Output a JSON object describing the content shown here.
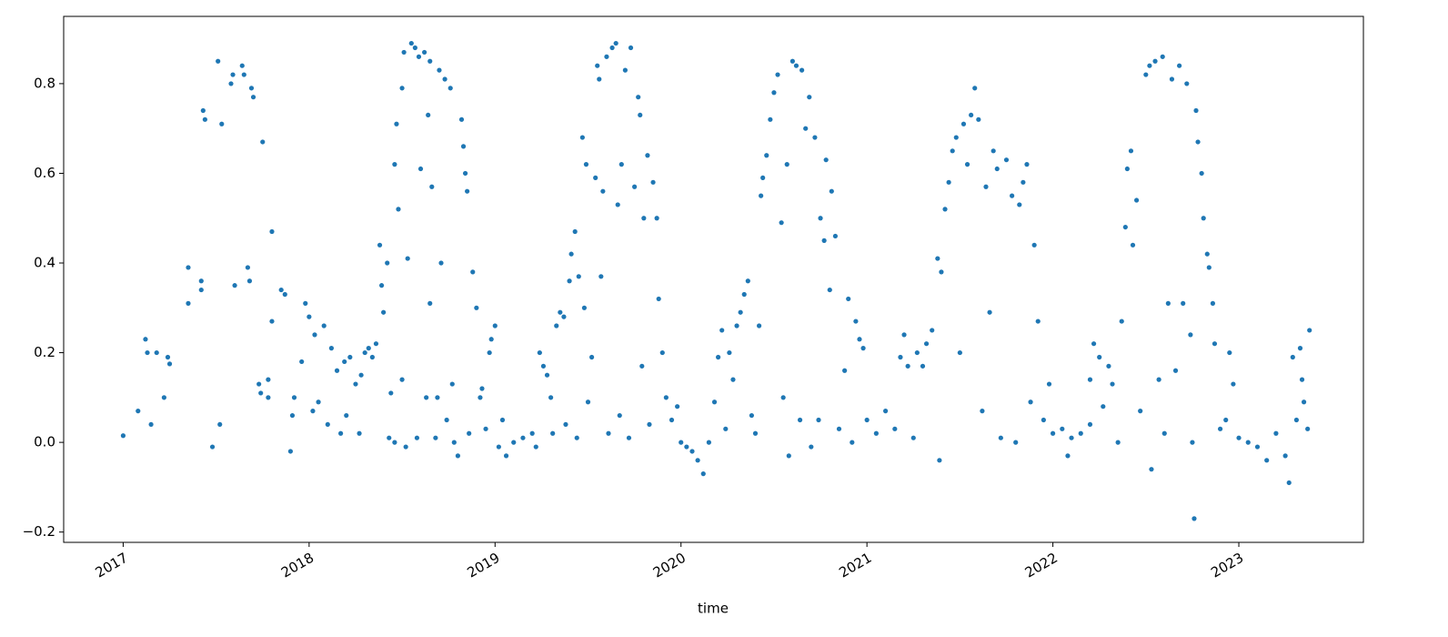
{
  "chart_data": {
    "type": "scatter",
    "xlabel": "time",
    "color": "#1f77b4",
    "xlim": [
      2016.68,
      2023.67
    ],
    "xticks": [
      2017,
      2018,
      2019,
      2020,
      2021,
      2022,
      2023
    ],
    "ylim": [
      -0.223,
      0.95
    ],
    "yticks": [
      {
        "value": -0.2,
        "label": "−0.2"
      },
      {
        "value": 0,
        "label": "0.0"
      },
      0.2,
      0.4,
      0.6,
      0.8
    ],
    "x": [
      2017.0,
      2017.08,
      2017.12,
      2017.13,
      2017.15,
      2017.18,
      2017.22,
      2017.24,
      2017.25,
      2017.35,
      2017.35,
      2017.42,
      2017.42,
      2017.43,
      2017.44,
      2017.48,
      2017.51,
      2017.52,
      2017.53,
      2017.58,
      2017.59,
      2017.6,
      2017.64,
      2017.65,
      2017.67,
      2017.68,
      2017.69,
      2017.7,
      2017.73,
      2017.74,
      2017.75,
      2017.78,
      2017.78,
      2017.8,
      2017.8,
      2017.85,
      2017.87,
      2017.9,
      2017.91,
      2017.92,
      2017.96,
      2017.98,
      2018.0,
      2018.02,
      2018.03,
      2018.05,
      2018.08,
      2018.1,
      2018.12,
      2018.15,
      2018.17,
      2018.19,
      2018.2,
      2018.22,
      2018.25,
      2018.27,
      2018.28,
      2018.3,
      2018.32,
      2018.34,
      2018.36,
      2018.38,
      2018.39,
      2018.4,
      2018.42,
      2018.43,
      2018.44,
      2018.46,
      2018.46,
      2018.47,
      2018.48,
      2018.5,
      2018.5,
      2018.51,
      2018.52,
      2018.53,
      2018.55,
      2018.57,
      2018.58,
      2018.59,
      2018.6,
      2018.62,
      2018.63,
      2018.64,
      2018.65,
      2018.65,
      2018.66,
      2018.68,
      2018.69,
      2018.7,
      2018.71,
      2018.73,
      2018.74,
      2018.76,
      2018.77,
      2018.78,
      2018.8,
      2018.82,
      2018.83,
      2018.84,
      2018.85,
      2018.86,
      2018.88,
      2018.9,
      2018.92,
      2018.93,
      2018.95,
      2018.97,
      2018.98,
      2019.0,
      2019.02,
      2019.04,
      2019.06,
      2019.1,
      2019.15,
      2019.2,
      2019.22,
      2019.24,
      2019.26,
      2019.28,
      2019.3,
      2019.31,
      2019.33,
      2019.35,
      2019.37,
      2019.38,
      2019.4,
      2019.41,
      2019.43,
      2019.44,
      2019.45,
      2019.47,
      2019.48,
      2019.49,
      2019.5,
      2019.52,
      2019.54,
      2019.55,
      2019.56,
      2019.57,
      2019.58,
      2019.6,
      2019.61,
      2019.63,
      2019.65,
      2019.66,
      2019.67,
      2019.68,
      2019.7,
      2019.72,
      2019.73,
      2019.75,
      2019.77,
      2019.78,
      2019.79,
      2019.8,
      2019.82,
      2019.83,
      2019.85,
      2019.87,
      2019.88,
      2019.9,
      2019.92,
      2019.95,
      2019.98,
      2020.0,
      2020.03,
      2020.06,
      2020.09,
      2020.12,
      2020.15,
      2020.18,
      2020.2,
      2020.22,
      2020.24,
      2020.26,
      2020.28,
      2020.3,
      2020.32,
      2020.34,
      2020.36,
      2020.38,
      2020.4,
      2020.42,
      2020.43,
      2020.44,
      2020.46,
      2020.48,
      2020.5,
      2020.52,
      2020.54,
      2020.55,
      2020.57,
      2020.58,
      2020.6,
      2020.62,
      2020.64,
      2020.65,
      2020.67,
      2020.69,
      2020.7,
      2020.72,
      2020.74,
      2020.75,
      2020.77,
      2020.78,
      2020.8,
      2020.81,
      2020.83,
      2020.85,
      2020.88,
      2020.9,
      2020.92,
      2020.94,
      2020.96,
      2020.98,
      2021.0,
      2021.05,
      2021.1,
      2021.15,
      2021.18,
      2021.2,
      2021.22,
      2021.25,
      2021.27,
      2021.3,
      2021.32,
      2021.35,
      2021.38,
      2021.39,
      2021.4,
      2021.42,
      2021.44,
      2021.46,
      2021.48,
      2021.5,
      2021.52,
      2021.54,
      2021.56,
      2021.58,
      2021.6,
      2021.62,
      2021.64,
      2021.66,
      2021.68,
      2021.7,
      2021.72,
      2021.75,
      2021.78,
      2021.8,
      2021.82,
      2021.84,
      2021.86,
      2021.88,
      2021.9,
      2021.92,
      2021.95,
      2021.98,
      2022.0,
      2022.05,
      2022.08,
      2022.1,
      2022.15,
      2022.2,
      2022.2,
      2022.22,
      2022.25,
      2022.27,
      2022.3,
      2022.32,
      2022.35,
      2022.37,
      2022.39,
      2022.4,
      2022.42,
      2022.43,
      2022.45,
      2022.47,
      2022.5,
      2022.52,
      2022.53,
      2022.55,
      2022.57,
      2022.59,
      2022.6,
      2022.62,
      2022.64,
      2022.66,
      2022.68,
      2022.7,
      2022.72,
      2022.74,
      2022.75,
      2022.76,
      2022.77,
      2022.78,
      2022.8,
      2022.81,
      2022.83,
      2022.84,
      2022.86,
      2022.87,
      2022.9,
      2022.93,
      2022.95,
      2022.97,
      2023.0,
      2023.05,
      2023.1,
      2023.15,
      2023.2,
      2023.25,
      2023.27,
      2023.29,
      2023.31,
      2023.33,
      2023.34,
      2023.35,
      2023.37,
      2023.38
    ],
    "values": [
      0.015,
      0.07,
      0.23,
      0.2,
      0.04,
      0.2,
      0.1,
      0.19,
      0.175,
      0.39,
      0.31,
      0.36,
      0.34,
      0.74,
      0.72,
      -0.01,
      0.85,
      0.04,
      0.71,
      0.8,
      0.82,
      0.35,
      0.84,
      0.82,
      0.39,
      0.36,
      0.79,
      0.77,
      0.13,
      0.11,
      0.67,
      0.14,
      0.1,
      0.47,
      0.27,
      0.34,
      0.33,
      -0.02,
      0.06,
      0.1,
      0.18,
      0.31,
      0.28,
      0.07,
      0.24,
      0.09,
      0.26,
      0.04,
      0.21,
      0.16,
      0.02,
      0.18,
      0.06,
      0.19,
      0.13,
      0.02,
      0.15,
      0.2,
      0.21,
      0.19,
      0.22,
      0.44,
      0.35,
      0.29,
      0.4,
      0.01,
      0.11,
      0.62,
      0.0,
      0.71,
      0.52,
      0.79,
      0.14,
      0.87,
      -0.01,
      0.41,
      0.89,
      0.88,
      0.01,
      0.86,
      0.61,
      0.87,
      0.1,
      0.73,
      0.31,
      0.85,
      0.57,
      0.01,
      0.1,
      0.83,
      0.4,
      0.81,
      0.05,
      0.79,
      0.13,
      0.0,
      -0.03,
      0.72,
      0.66,
      0.6,
      0.56,
      0.02,
      0.38,
      0.3,
      0.1,
      0.12,
      0.03,
      0.2,
      0.23,
      0.26,
      -0.01,
      0.05,
      -0.03,
      0.0,
      0.01,
      0.02,
      -0.01,
      0.2,
      0.17,
      0.15,
      0.1,
      0.02,
      0.26,
      0.29,
      0.28,
      0.04,
      0.36,
      0.42,
      0.47,
      0.01,
      0.37,
      0.68,
      0.3,
      0.62,
      0.09,
      0.19,
      0.59,
      0.84,
      0.81,
      0.37,
      0.56,
      0.86,
      0.02,
      0.88,
      0.89,
      0.53,
      0.06,
      0.62,
      0.83,
      0.01,
      0.88,
      0.57,
      0.77,
      0.73,
      0.17,
      0.5,
      0.64,
      0.04,
      0.58,
      0.5,
      0.32,
      0.2,
      0.1,
      0.05,
      0.08,
      0.0,
      -0.01,
      -0.02,
      -0.04,
      -0.07,
      0.0,
      0.09,
      0.19,
      0.25,
      0.03,
      0.2,
      0.14,
      0.26,
      0.29,
      0.33,
      0.36,
      0.06,
      0.02,
      0.26,
      0.55,
      0.59,
      0.64,
      0.72,
      0.78,
      0.82,
      0.49,
      0.1,
      0.62,
      -0.03,
      0.85,
      0.84,
      0.05,
      0.83,
      0.7,
      0.77,
      -0.01,
      0.68,
      0.05,
      0.5,
      0.45,
      0.63,
      0.34,
      0.56,
      0.46,
      0.03,
      0.16,
      0.32,
      0.0,
      0.27,
      0.23,
      0.21,
      0.05,
      0.02,
      0.07,
      0.03,
      0.19,
      0.24,
      0.17,
      0.01,
      0.2,
      0.17,
      0.22,
      0.25,
      0.41,
      -0.04,
      0.38,
      0.52,
      0.58,
      0.65,
      0.68,
      0.2,
      0.71,
      0.62,
      0.73,
      0.79,
      0.72,
      0.07,
      0.57,
      0.29,
      0.65,
      0.61,
      0.01,
      0.63,
      0.55,
      0.0,
      0.53,
      0.58,
      0.62,
      0.09,
      0.44,
      0.27,
      0.05,
      0.13,
      0.02,
      0.03,
      -0.03,
      0.01,
      0.02,
      0.04,
      0.14,
      0.22,
      0.19,
      0.08,
      0.17,
      0.13,
      0.0,
      0.27,
      0.48,
      0.61,
      0.65,
      0.44,
      0.54,
      0.07,
      0.82,
      0.84,
      -0.06,
      0.85,
      0.14,
      0.86,
      0.02,
      0.31,
      0.81,
      0.16,
      0.84,
      0.31,
      0.8,
      0.24,
      0.0,
      -0.17,
      0.74,
      0.67,
      0.6,
      0.5,
      0.42,
      0.39,
      0.31,
      0.22,
      0.03,
      0.05,
      0.2,
      0.13,
      0.01,
      0.0,
      -0.01,
      -0.04,
      0.02,
      -0.03,
      -0.09,
      0.19,
      0.05,
      0.21,
      0.14,
      0.09,
      0.03,
      0.25
    ]
  }
}
